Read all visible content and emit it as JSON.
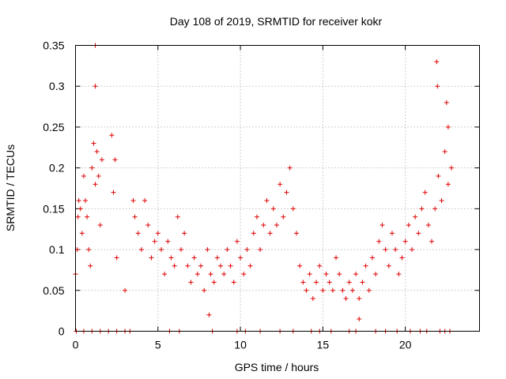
{
  "chart_data": {
    "type": "scatter",
    "title": "Day 108 of 2019, SRMTID for receiver kokr",
    "xlabel": "GPS time / hours",
    "ylabel": "SRMTID / TECUs",
    "xlim": [
      0,
      24.5
    ],
    "ylim": [
      0,
      0.35
    ],
    "xticks": [
      0,
      5,
      10,
      15,
      20
    ],
    "xtick_labels": [
      "0",
      "5",
      "10",
      "15",
      "20"
    ],
    "yticks": [
      0,
      0.05,
      0.1,
      0.15,
      0.2,
      0.25,
      0.3,
      0.35
    ],
    "ytick_labels": [
      "0",
      "0.05",
      "0.1",
      "0.15",
      "0.2",
      "0.25",
      "0.3",
      "0.35"
    ],
    "grid": true,
    "marker": "plus",
    "color": "#e00000",
    "series": [
      {
        "name": "SRMTID",
        "x": [
          0.0,
          0.1,
          0.15,
          0.2,
          0.3,
          0.4,
          0.5,
          0.6,
          0.7,
          0.8,
          0.9,
          1.0,
          1.1,
          1.2,
          1.3,
          1.4,
          1.5,
          1.6,
          1.2,
          1.2,
          2.2,
          2.3,
          2.4,
          2.5,
          3.5,
          3.6,
          3.8,
          4.0,
          4.2,
          4.4,
          4.6,
          4.8,
          5.0,
          5.2,
          5.4,
          5.6,
          5.8,
          6.0,
          6.2,
          6.4,
          6.6,
          6.8,
          7.0,
          7.2,
          7.4,
          7.6,
          7.8,
          8.0,
          8.2,
          8.4,
          8.6,
          8.8,
          9.0,
          9.2,
          9.4,
          9.6,
          9.8,
          10.0,
          10.2,
          10.4,
          10.6,
          10.8,
          11.0,
          11.2,
          11.4,
          11.6,
          11.8,
          12.0,
          12.2,
          12.4,
          12.6,
          12.8,
          13.0,
          13.2,
          13.4,
          13.6,
          13.8,
          14.0,
          14.2,
          14.4,
          14.6,
          14.8,
          15.0,
          15.2,
          15.4,
          15.6,
          15.8,
          16.0,
          16.2,
          16.4,
          16.6,
          16.8,
          17.0,
          17.2,
          17.4,
          17.6,
          17.8,
          18.0,
          18.2,
          18.4,
          18.6,
          18.8,
          19.0,
          19.2,
          19.4,
          19.6,
          19.8,
          20.0,
          20.2,
          20.4,
          20.6,
          20.8,
          21.0,
          21.2,
          21.4,
          21.6,
          21.8,
          22.0,
          22.2,
          22.4,
          22.6,
          22.8,
          21.9,
          21.95,
          22.5,
          22.6,
          8.1,
          17.2,
          3.0,
          0.05,
          0.5,
          1.0,
          1.5,
          2.0,
          2.5,
          3.0,
          3.3,
          5.7,
          6.3,
          8.3,
          9.8,
          10.3,
          11.2,
          12.4,
          13.2,
          14.3,
          14.8,
          15.5,
          16.6,
          17.0,
          18.2,
          18.8,
          19.5,
          20.3,
          20.9,
          21.3,
          22.1,
          22.4,
          22.7
        ],
        "y": [
          0.07,
          0.1,
          0.14,
          0.16,
          0.15,
          0.12,
          0.19,
          0.16,
          0.14,
          0.1,
          0.08,
          0.2,
          0.23,
          0.18,
          0.22,
          0.19,
          0.13,
          0.21,
          0.3,
          0.35,
          0.24,
          0.17,
          0.21,
          0.09,
          0.16,
          0.14,
          0.12,
          0.1,
          0.16,
          0.13,
          0.09,
          0.11,
          0.12,
          0.1,
          0.07,
          0.11,
          0.09,
          0.08,
          0.14,
          0.1,
          0.12,
          0.08,
          0.06,
          0.09,
          0.07,
          0.08,
          0.05,
          0.1,
          0.07,
          0.06,
          0.09,
          0.08,
          0.07,
          0.1,
          0.08,
          0.06,
          0.11,
          0.09,
          0.07,
          0.1,
          0.08,
          0.12,
          0.14,
          0.1,
          0.13,
          0.16,
          0.12,
          0.15,
          0.13,
          0.18,
          0.14,
          0.17,
          0.2,
          0.15,
          0.12,
          0.08,
          0.06,
          0.05,
          0.07,
          0.04,
          0.06,
          0.08,
          0.05,
          0.07,
          0.06,
          0.05,
          0.09,
          0.07,
          0.05,
          0.04,
          0.06,
          0.05,
          0.07,
          0.04,
          0.06,
          0.08,
          0.05,
          0.09,
          0.07,
          0.11,
          0.13,
          0.1,
          0.08,
          0.12,
          0.1,
          0.07,
          0.09,
          0.11,
          0.13,
          0.1,
          0.14,
          0.12,
          0.15,
          0.17,
          0.13,
          0.11,
          0.15,
          0.19,
          0.16,
          0.22,
          0.18,
          0.2,
          0.33,
          0.3,
          0.28,
          0.25,
          0.02,
          0.015,
          0.05,
          0.0,
          0.0,
          0.0,
          0.0,
          0.0,
          0.0,
          0.0,
          0.0,
          0.0,
          0.0,
          0.0,
          0.0,
          0.0,
          0.0,
          0.0,
          0.0,
          0.0,
          0.0,
          0.0,
          0.0,
          0.0,
          0.0,
          0.0,
          0.0,
          0.0,
          0.0,
          0.0,
          0.0,
          0.0,
          0.0
        ]
      }
    ]
  }
}
